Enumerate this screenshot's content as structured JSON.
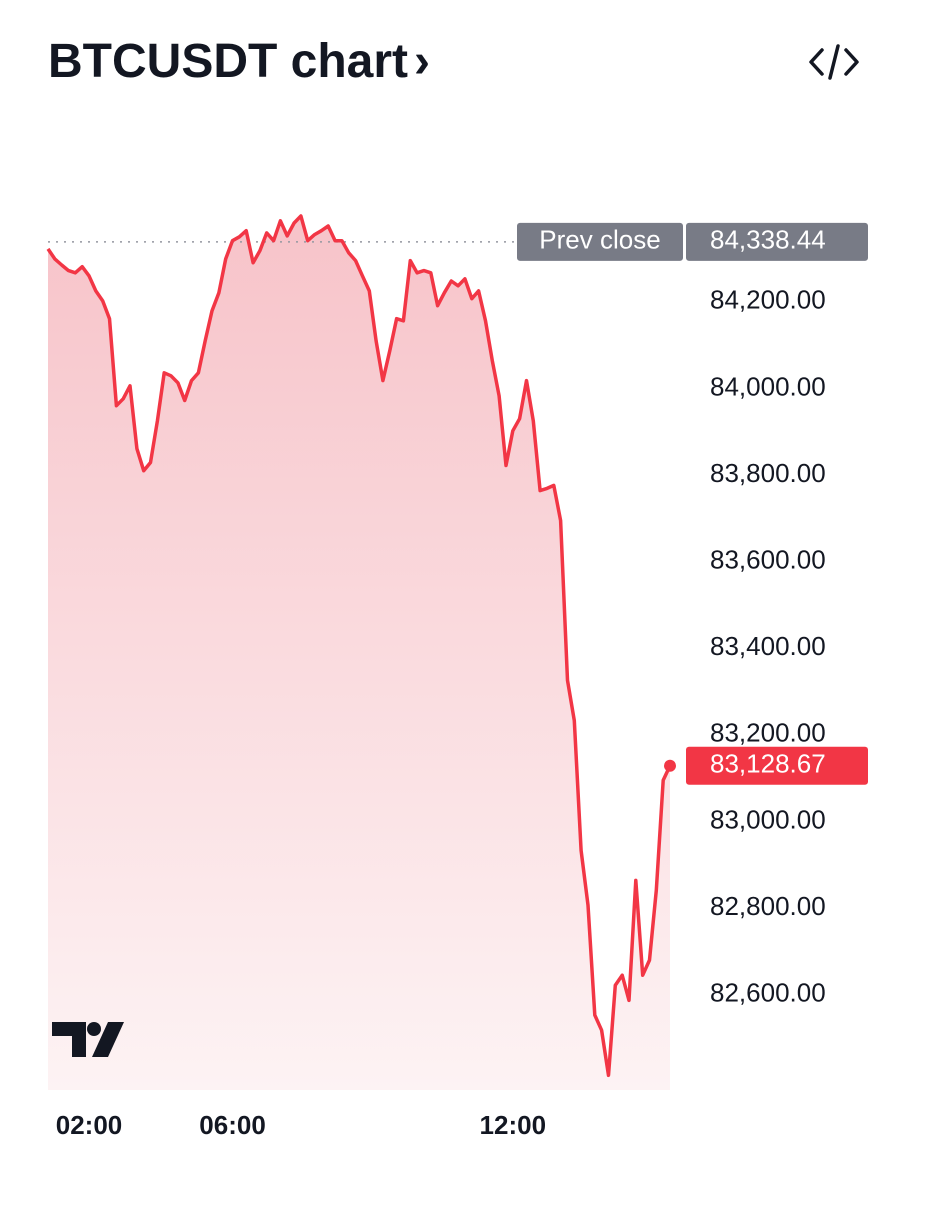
{
  "chart_data": {
    "type": "area-line",
    "title": "BTCUSDT chart",
    "title_suffix": "›",
    "values": [
      84322,
      84299,
      84285,
      84272,
      84267,
      84281,
      84260,
      84225,
      84202,
      84161,
      83960,
      83976,
      84006,
      83861,
      83810,
      83829,
      83925,
      84036,
      84029,
      84013,
      83972,
      84018,
      84036,
      84110,
      84179,
      84221,
      84299,
      84341,
      84350,
      84364,
      84290,
      84318,
      84359,
      84341,
      84387,
      84352,
      84382,
      84398,
      84341,
      84355,
      84364,
      84375,
      84341,
      84341,
      84313,
      84295,
      84260,
      84225,
      84110,
      84018,
      84087,
      84161,
      84156,
      84295,
      84267,
      84272,
      84267,
      84191,
      84221,
      84248,
      84237,
      84253,
      84207,
      84225,
      84156,
      84064,
      83983,
      83822,
      83902,
      83930,
      84018,
      83925,
      83764,
      83769,
      83776,
      83695,
      83326,
      83233,
      82933,
      82807,
      82553,
      82518,
      82414,
      82622,
      82645,
      82587,
      82864,
      82645,
      82680,
      82841,
      83095,
      83128.67
    ],
    "color": "#f23645",
    "xlim": [
      0,
      91
    ],
    "xticks": [
      {
        "value": 6,
        "label": "02:00"
      },
      {
        "value": 27,
        "label": "06:00"
      },
      {
        "value": 68,
        "label": "12:00"
      }
    ],
    "ylim": [
      82380,
      84435
    ],
    "yticks": [
      {
        "value": 84200,
        "label": "84,200.00"
      },
      {
        "value": 84000,
        "label": "84,000.00"
      },
      {
        "value": 83800,
        "label": "83,800.00"
      },
      {
        "value": 83600,
        "label": "83,600.00"
      },
      {
        "value": 83400,
        "label": "83,400.00"
      },
      {
        "value": 83200,
        "label": "83,200.00"
      },
      {
        "value": 83000,
        "label": "83,000.00"
      },
      {
        "value": 82800,
        "label": "82,800.00"
      },
      {
        "value": 82600,
        "label": "82,600.00"
      }
    ],
    "prev_close": {
      "name": "Prev close",
      "value": 84338.44,
      "label": "84,338.44",
      "color": "#787b86"
    },
    "last_price": {
      "value": 83128.67,
      "label": "83,128.67"
    }
  }
}
